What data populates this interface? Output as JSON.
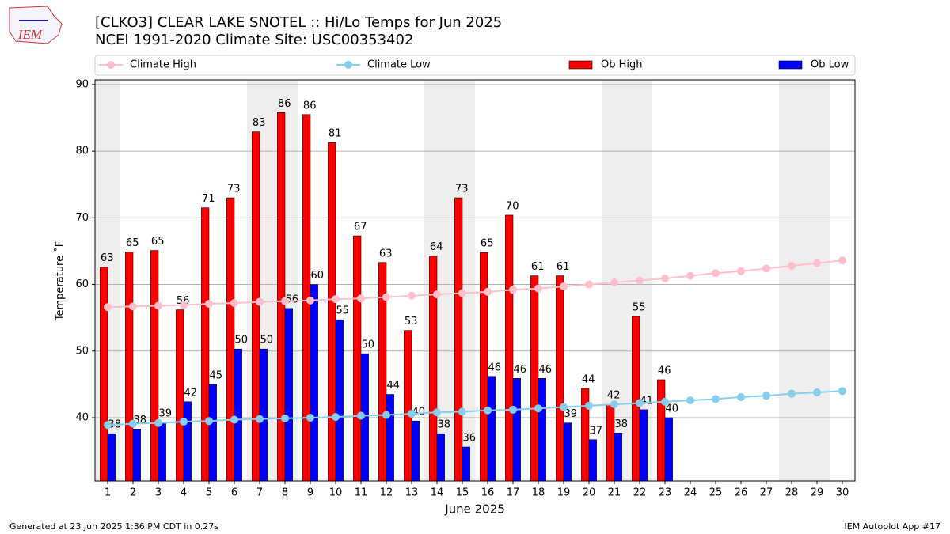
{
  "logo": "IEM",
  "footer_left": "Generated at 23 Jun 2025 1:36 PM CDT in 0.27s",
  "footer_right": "IEM Autoplot App #17",
  "chart_data": {
    "type": "bar",
    "title": "[CLKO3] CLEAR LAKE SNOTEL :: Hi/Lo Temps for Jun 2025",
    "subtitle": "NCEI 1991-2020 Climate Site: USC00353402",
    "xlabel": "June 2025",
    "ylabel": "Temperature ˚F",
    "x": [
      1,
      2,
      3,
      4,
      5,
      6,
      7,
      8,
      9,
      10,
      11,
      12,
      13,
      14,
      15,
      16,
      17,
      18,
      19,
      20,
      21,
      22,
      23,
      24,
      25,
      26,
      27,
      28,
      29,
      30
    ],
    "xlim": [
      0.5,
      30.5
    ],
    "xticks": [
      1,
      2,
      3,
      4,
      5,
      6,
      7,
      8,
      9,
      10,
      11,
      12,
      13,
      14,
      15,
      16,
      17,
      18,
      19,
      20,
      21,
      22,
      23,
      24,
      25,
      26,
      27,
      28,
      29,
      30
    ],
    "ylim": [
      30.5,
      90.7
    ],
    "yticks": [
      40,
      50,
      60,
      70,
      80,
      90
    ],
    "grid": true,
    "legend": "top",
    "weekend_days": [
      1,
      7,
      8,
      14,
      15,
      21,
      22,
      28,
      29
    ],
    "weekend_color": "#eeeeee",
    "series": [
      {
        "name": "Climate High",
        "kind": "line",
        "color": "#ffc0cb",
        "values": [
          56.6,
          56.7,
          56.8,
          56.9,
          57.1,
          57.2,
          57.4,
          57.5,
          57.6,
          57.8,
          57.9,
          58.1,
          58.3,
          58.5,
          58.7,
          58.9,
          59.2,
          59.4,
          59.7,
          60.0,
          60.3,
          60.6,
          60.9,
          61.3,
          61.7,
          62.0,
          62.4,
          62.8,
          63.2,
          63.6
        ]
      },
      {
        "name": "Climate Low",
        "kind": "line",
        "color": "#87ceeb",
        "values": [
          38.9,
          39.1,
          39.2,
          39.4,
          39.5,
          39.7,
          39.8,
          39.9,
          40.0,
          40.1,
          40.3,
          40.4,
          40.6,
          40.8,
          40.9,
          41.1,
          41.2,
          41.4,
          41.6,
          41.8,
          42.0,
          42.2,
          42.4,
          42.6,
          42.8,
          43.1,
          43.3,
          43.6,
          43.8,
          44.0
        ]
      },
      {
        "name": "Ob High",
        "kind": "bar",
        "color": "#ff0000",
        "values": [
          62.6,
          64.9,
          65.1,
          56.2,
          71.5,
          73.0,
          82.9,
          85.8,
          85.5,
          81.3,
          67.3,
          63.3,
          53.1,
          64.3,
          73.0,
          64.8,
          70.4,
          61.3,
          61.3,
          44.4,
          42.0,
          55.2,
          45.7,
          null,
          null,
          null,
          null,
          null,
          null,
          null
        ],
        "value_labels": [
          "63",
          "65",
          "65",
          "56",
          "71",
          "73",
          "83",
          "86",
          "86",
          "81",
          "67",
          "63",
          "53",
          "64",
          "73",
          "65",
          "70",
          "61",
          "61",
          "44",
          "42",
          "55",
          "46",
          null,
          null,
          null,
          null,
          null,
          null,
          null
        ]
      },
      {
        "name": "Ob Low",
        "kind": "bar",
        "color": "#0000ff",
        "values": [
          37.6,
          38.3,
          39.3,
          42.4,
          45.0,
          50.3,
          50.3,
          56.4,
          60.0,
          54.7,
          49.6,
          43.5,
          39.5,
          37.6,
          35.6,
          46.2,
          45.9,
          45.9,
          39.2,
          36.7,
          37.7,
          41.2,
          40.0,
          null,
          null,
          null,
          null,
          null,
          null,
          null
        ],
        "value_labels": [
          "38",
          "38",
          "39",
          "42",
          "45",
          "50",
          "50",
          "56",
          "60",
          "55",
          "50",
          "44",
          "40",
          "38",
          "36",
          "46",
          "46",
          "46",
          "39",
          "37",
          "38",
          "41",
          "40",
          null,
          null,
          null,
          null,
          null,
          null,
          null
        ]
      }
    ]
  }
}
